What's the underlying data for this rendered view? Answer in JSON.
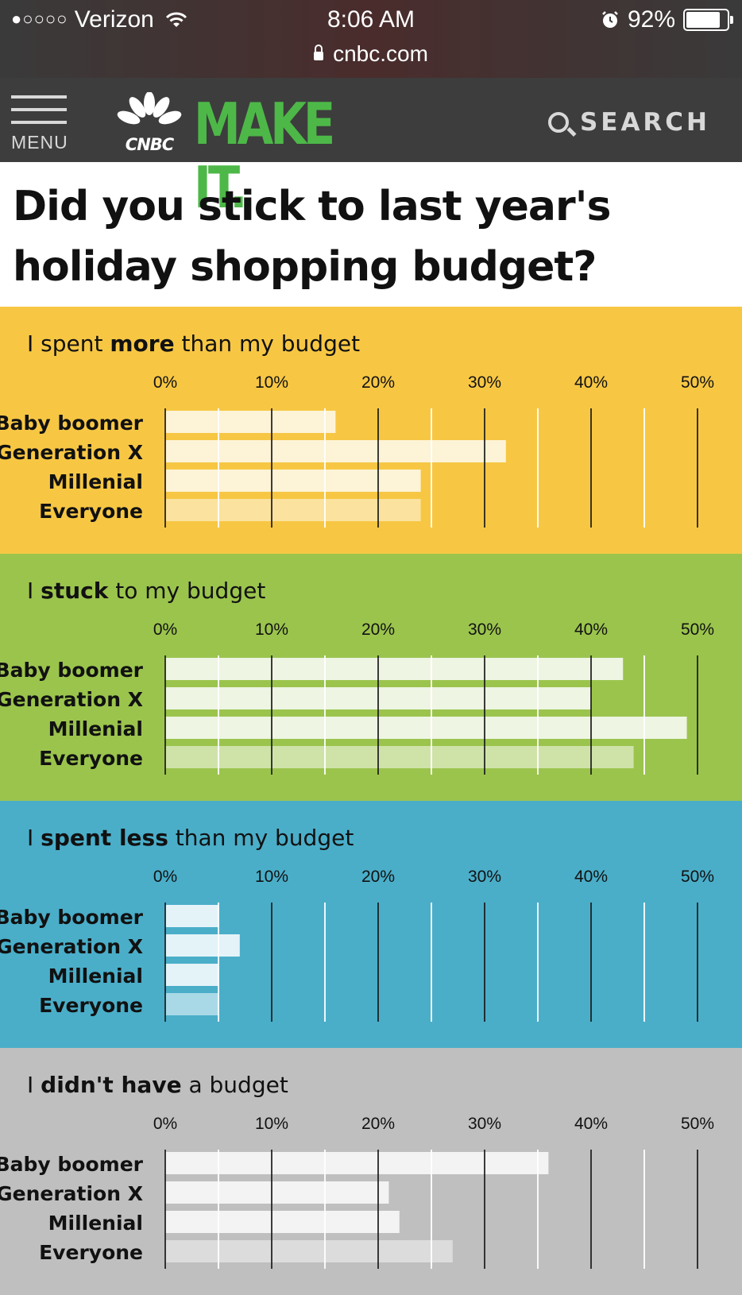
{
  "status_bar": {
    "signal_dots": "●○○○○",
    "carrier": "Verizon",
    "wifi_icon": "wifi-icon",
    "time": "8:06 AM",
    "alarm_icon": "alarm-clock-icon",
    "battery": "92%",
    "battery_level": 0.92,
    "url": "cnbc.com"
  },
  "nav": {
    "menu_label": "MENU",
    "logo_small": "CNBC",
    "logo_main": "MAKE IT.",
    "search_label": "SEARCH",
    "logo_color": "#4db848"
  },
  "page": {
    "title": "Did you stick to last year's holiday shopping budget?"
  },
  "chart_data": [
    {
      "type": "bar",
      "title_pre": "I spent ",
      "title_bold": "more",
      "title_post": " than my budget",
      "bg": "#f7c744",
      "bar_color": "#fdf3d6",
      "everyone_color": "#fbe39f",
      "categories": [
        "Baby boomer",
        "Generation X",
        "Millenial",
        "Everyone"
      ],
      "values": [
        16,
        32,
        24,
        24
      ],
      "xlim": [
        0,
        50
      ],
      "ticks": [
        "0%",
        "10%",
        "20%",
        "30%",
        "40%",
        "50%"
      ]
    },
    {
      "type": "bar",
      "title_pre": "I ",
      "title_bold": "stuck",
      "title_post": " to my budget",
      "bg": "#9bc44d",
      "bar_color": "#eef5e3",
      "everyone_color": "#cfe3a9",
      "categories": [
        "Baby boomer",
        "Generation X",
        "Millenial",
        "Everyone"
      ],
      "values": [
        43,
        40,
        49,
        44
      ],
      "xlim": [
        0,
        50
      ],
      "ticks": [
        "0%",
        "10%",
        "20%",
        "30%",
        "40%",
        "50%"
      ]
    },
    {
      "type": "bar",
      "title_pre": "I ",
      "title_bold": "spent less",
      "title_post": " than my budget",
      "bg": "#4aaec9",
      "bar_color": "#e4f3f8",
      "everyone_color": "#a9d9e6",
      "categories": [
        "Baby boomer",
        "Generation X",
        "Millenial",
        "Everyone"
      ],
      "values": [
        5,
        7,
        5,
        5
      ],
      "xlim": [
        0,
        50
      ],
      "ticks": [
        "0%",
        "10%",
        "20%",
        "30%",
        "40%",
        "50%"
      ]
    },
    {
      "type": "bar",
      "title_pre": "I ",
      "title_bold": "didn't have",
      "title_post": " a budget",
      "bg": "#bfbfbf",
      "bar_color": "#f3f3f3",
      "everyone_color": "#dcdcdc",
      "categories": [
        "Baby boomer",
        "Generation X",
        "Millenial",
        "Everyone"
      ],
      "values": [
        36,
        21,
        22,
        27
      ],
      "xlim": [
        0,
        50
      ],
      "ticks": [
        "0%",
        "10%",
        "20%",
        "30%",
        "40%",
        "50%"
      ]
    }
  ]
}
